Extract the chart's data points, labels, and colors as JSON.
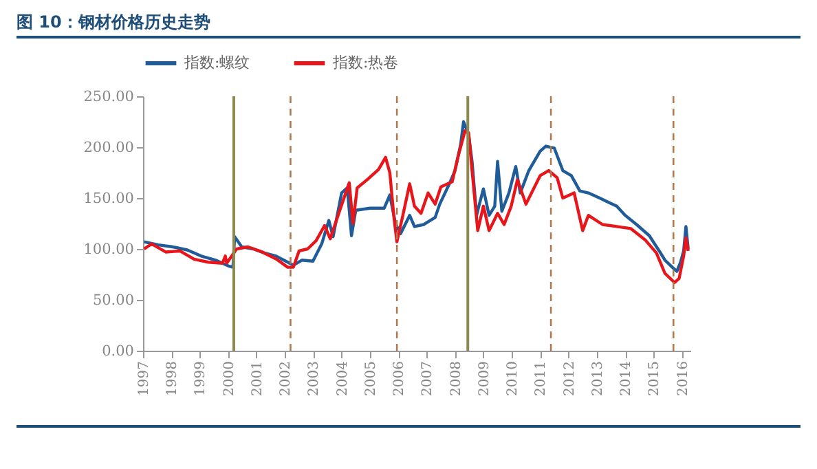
{
  "chart_data": {
    "type": "line",
    "title": "图 10：钢材价格历史走势",
    "xlim": [
      1997,
      2016.3
    ],
    "xticks": [
      1997,
      1998,
      1999,
      2000,
      2001,
      2002,
      2003,
      2004,
      2005,
      2006,
      2007,
      2008,
      2009,
      2010,
      2011,
      2012,
      2013,
      2014,
      2015,
      2016
    ],
    "ylim": [
      0,
      250
    ],
    "yticks": [
      {
        "value": 0,
        "label": "0.00"
      },
      {
        "value": 50,
        "label": "50.00"
      },
      {
        "value": 100,
        "label": "100.00"
      },
      {
        "value": 150,
        "label": "150.00"
      },
      {
        "value": 200,
        "label": "200.00"
      },
      {
        "value": 250,
        "label": "250.00"
      }
    ],
    "legend": "top",
    "grid": false,
    "marker": "none",
    "line_style": "solid",
    "series": [
      {
        "name": "指数:螺纹",
        "color": "#1f5c99",
        "x": [
          1997.04,
          1997.54,
          1998.05,
          1998.56,
          1999.05,
          1999.56,
          2000.04,
          2000.17,
          2000.23,
          2000.48,
          2000.89,
          2001.28,
          2001.69,
          2002.1,
          2002.3,
          2002.6,
          2002.99,
          2003.3,
          2003.55,
          2003.7,
          2004.0,
          2004.2,
          2004.35,
          2004.5,
          2005.0,
          2005.5,
          2005.7,
          2005.9,
          2006.08,
          2006.4,
          2006.57,
          2006.9,
          2007.3,
          2007.46,
          2007.8,
          2008.0,
          2008.2,
          2008.3,
          2008.4,
          2008.48,
          2008.6,
          2008.76,
          2008.84,
          2009.0,
          2009.2,
          2009.4,
          2009.5,
          2009.65,
          2009.9,
          2010.14,
          2010.3,
          2010.6,
          2011.0,
          2011.2,
          2011.5,
          2011.8,
          2012.1,
          2012.4,
          2012.7,
          2013.1,
          2013.4,
          2013.7,
          2014.0,
          2014.4,
          2014.85,
          2015.2,
          2015.4,
          2015.66,
          2015.82,
          2015.95,
          2016.06,
          2016.14,
          2016.22
        ],
        "values": [
          107,
          104,
          102,
          99,
          93,
          89,
          83,
          82,
          112,
          102,
          100,
          96,
          93,
          87,
          84,
          89,
          88,
          105,
          128,
          112,
          155,
          160,
          113,
          138,
          140,
          140,
          153,
          125,
          115,
          133,
          122,
          124,
          131,
          144,
          164,
          177,
          203,
          225,
          218,
          212,
          186,
          133,
          142,
          159,
          133,
          142,
          186,
          137,
          155,
          181,
          155,
          177,
          196,
          201,
          199,
          177,
          172,
          157,
          155,
          150,
          146,
          142,
          133,
          124,
          113,
          98,
          89,
          82,
          78,
          87,
          98,
          122,
          100
        ]
      },
      {
        "name": "指数:热卷",
        "color": "#e8161b",
        "x": [
          1997.04,
          1997.3,
          1997.8,
          1998.3,
          1998.8,
          1999.3,
          1999.8,
          1999.9,
          1999.95,
          2000.3,
          2000.7,
          2001.2,
          2001.7,
          2002.1,
          2002.3,
          2002.5,
          2002.8,
          2003.1,
          2003.4,
          2003.6,
          2003.9,
          2004.27,
          2004.4,
          2004.55,
          2004.9,
          2005.3,
          2005.55,
          2005.7,
          2005.85,
          2005.95,
          2006.16,
          2006.4,
          2006.57,
          2006.8,
          2007.05,
          2007.3,
          2007.5,
          2007.9,
          2008.1,
          2008.35,
          2008.48,
          2008.6,
          2008.8,
          2009.0,
          2009.2,
          2009.5,
          2009.73,
          2009.98,
          2010.2,
          2010.5,
          2011.0,
          2011.3,
          2011.6,
          2011.8,
          2012.2,
          2012.5,
          2012.7,
          2013.2,
          2013.7,
          2014.2,
          2014.7,
          2015.1,
          2015.4,
          2015.74,
          2015.9,
          2016.06,
          2016.14,
          2016.22
        ],
        "values": [
          100,
          105,
          97,
          98,
          90,
          87,
          86,
          93,
          86,
          100,
          102,
          97,
          90,
          82,
          82,
          98,
          100,
          108,
          123,
          110,
          135,
          165,
          125,
          160,
          168,
          178,
          190,
          175,
          130,
          107,
          133,
          164,
          142,
          135,
          155,
          144,
          161,
          166,
          190,
          216,
          214,
          177,
          118,
          142,
          118,
          135,
          124,
          142,
          168,
          144,
          172,
          177,
          170,
          150,
          155,
          118,
          133,
          124,
          122,
          120,
          109,
          96,
          76,
          67,
          71,
          93,
          111,
          98
        ]
      }
    ],
    "ref_lines": [
      {
        "axis": "x",
        "value": 2000.2,
        "color": "#8c8a50",
        "line_style": "solid"
      },
      {
        "axis": "x",
        "value": 2002.2,
        "color": "#b07a50",
        "line_style": "dashed"
      },
      {
        "axis": "x",
        "value": 2005.95,
        "color": "#b07a50",
        "line_style": "dashed"
      },
      {
        "axis": "x",
        "value": 2008.45,
        "color": "#8c8a50",
        "line_style": "solid"
      },
      {
        "axis": "x",
        "value": 2011.38,
        "color": "#b07a50",
        "line_style": "dashed"
      },
      {
        "axis": "x",
        "value": 2015.7,
        "color": "#b07a50",
        "line_style": "dashed"
      }
    ]
  }
}
